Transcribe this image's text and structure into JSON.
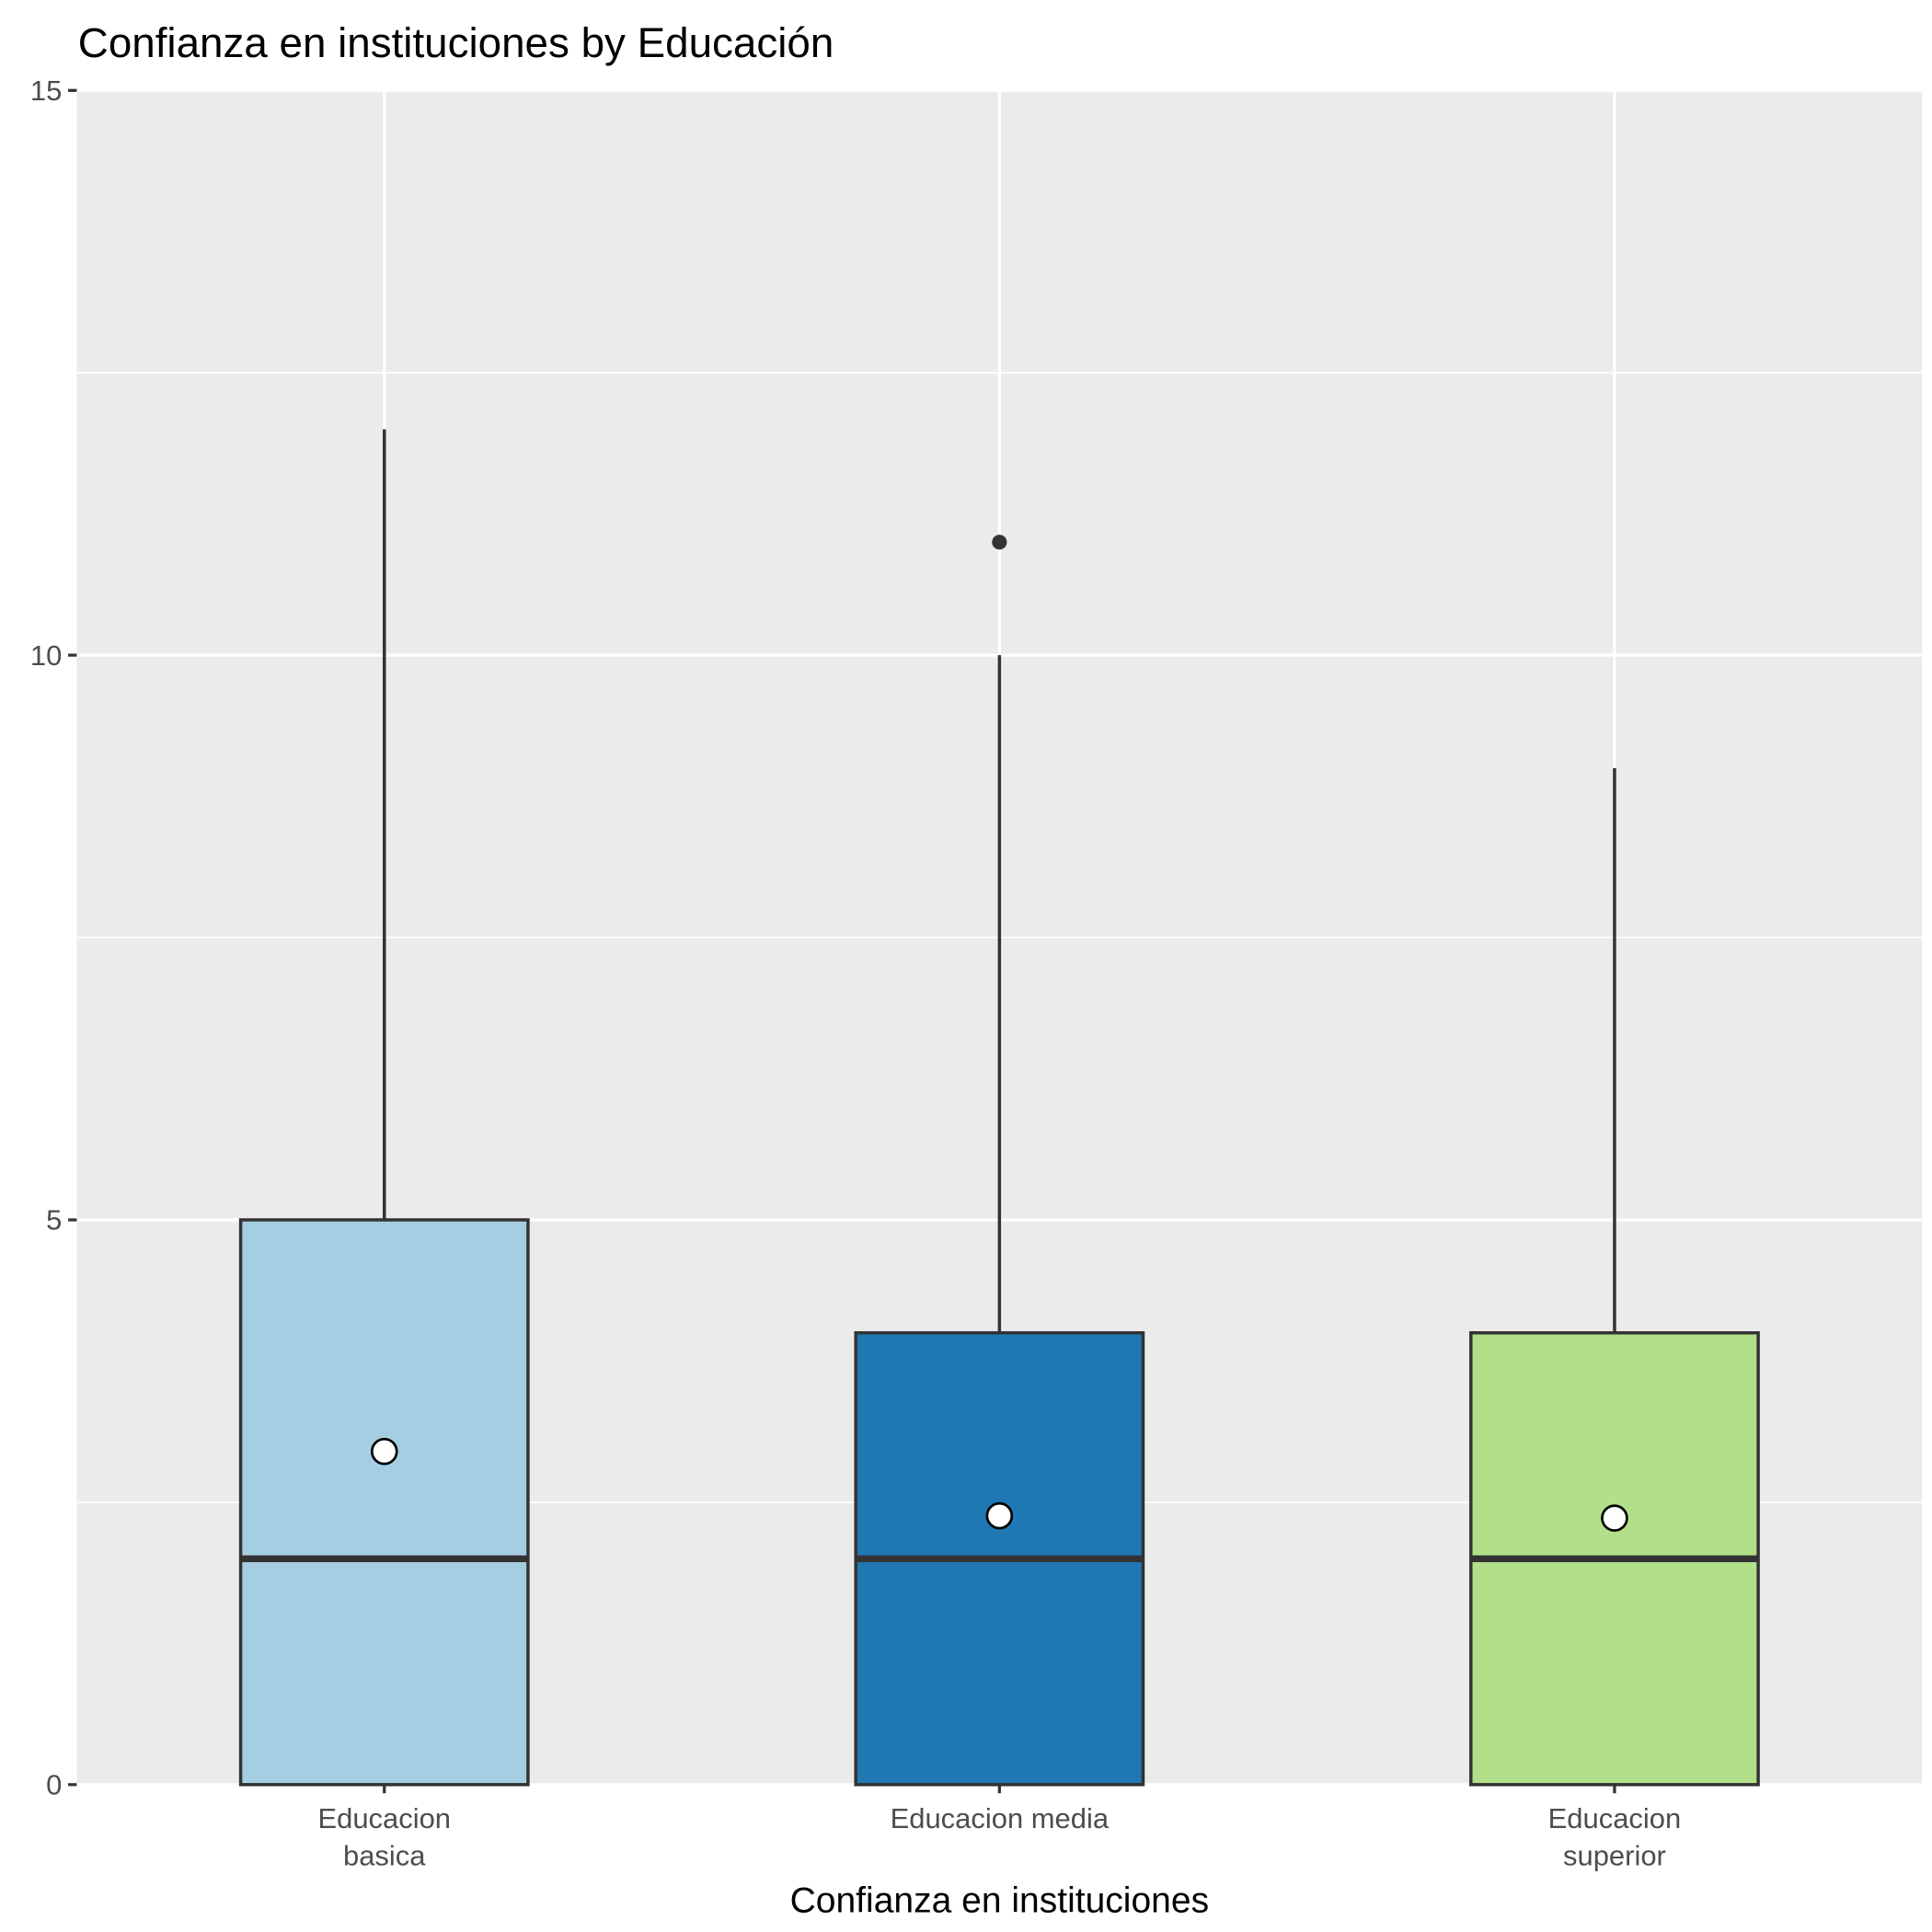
{
  "chart_data": {
    "type": "boxplot",
    "title": "Confianza en instituciones by Educación",
    "xlabel": "Confianza en instituciones",
    "ylabel": "",
    "ylim": [
      0,
      15
    ],
    "yticks": [
      "0",
      "5",
      "10",
      "15"
    ],
    "grid": true,
    "categories": [
      {
        "label": [
          "Educacion",
          "basica"
        ],
        "color": "#A6CEE3",
        "min": 0,
        "q1": 0,
        "median": 2,
        "q3": 5,
        "max": 12,
        "mean": 2.95,
        "outliers": []
      },
      {
        "label": [
          "Educacion media"
        ],
        "color": "#1F78B4",
        "min": 0,
        "q1": 0,
        "median": 2,
        "q3": 4,
        "max": 10,
        "mean": 2.38,
        "outliers": [
          11
        ]
      },
      {
        "label": [
          "Educacion",
          "superior"
        ],
        "color": "#B2DF8A",
        "min": 0,
        "q1": 0,
        "median": 2,
        "q3": 4,
        "max": 9,
        "mean": 2.36,
        "outliers": []
      }
    ],
    "panel_background": "#EBEBEB"
  }
}
